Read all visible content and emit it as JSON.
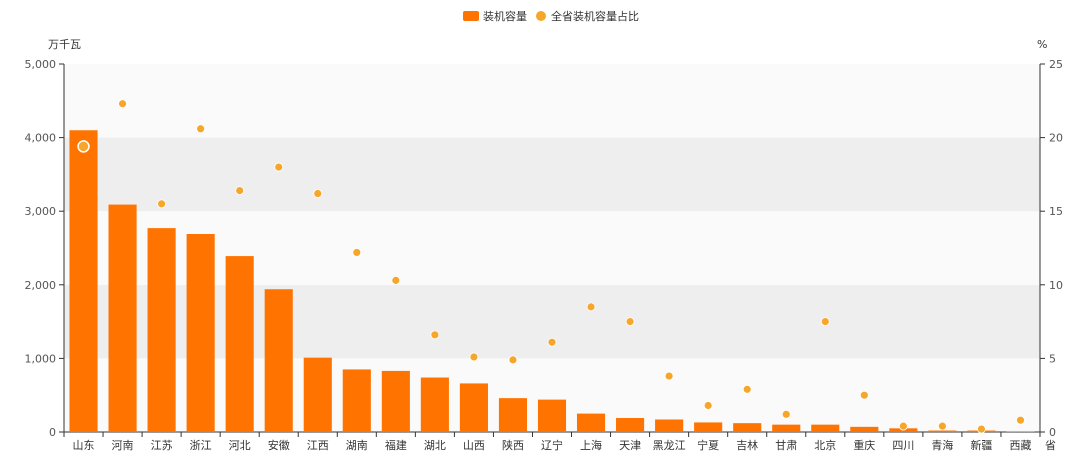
{
  "chart_data": {
    "type": "bar",
    "categories": [
      "山东",
      "河南",
      "江苏",
      "浙江",
      "河北",
      "安徽",
      "江西",
      "湖南",
      "福建",
      "湖北",
      "山西",
      "陕西",
      "辽宁",
      "上海",
      "天津",
      "黑龙江",
      "宁夏",
      "吉林",
      "甘肃",
      "北京",
      "重庆",
      "四川",
      "青海",
      "新疆",
      "西藏"
    ],
    "xlabel": "省",
    "legend_position": "top-center",
    "grid": "alternating horizontal bands",
    "series": [
      {
        "name": "装机容量",
        "type": "bar",
        "axis": "left",
        "color": "#FF7300",
        "values": [
          4100,
          3090,
          2770,
          2690,
          2390,
          1940,
          1010,
          850,
          830,
          740,
          660,
          460,
          440,
          250,
          190,
          170,
          130,
          120,
          100,
          100,
          70,
          50,
          20,
          20,
          5
        ]
      },
      {
        "name": "全省装机容量占比",
        "type": "scatter",
        "axis": "right",
        "color": "#F6A72B",
        "values": [
          19.4,
          22.3,
          15.5,
          20.6,
          16.4,
          18.0,
          16.2,
          12.2,
          10.3,
          6.6,
          5.1,
          4.9,
          6.1,
          8.5,
          7.5,
          3.8,
          1.8,
          2.9,
          1.2,
          7.5,
          2.5,
          0.4,
          0.4,
          0.2,
          0.8
        ]
      }
    ],
    "y_left": {
      "label": "万千瓦",
      "ylim": [
        0,
        5000
      ],
      "ticks": [
        "0",
        "1,000",
        "2,000",
        "3,000",
        "4,000",
        "5,000"
      ],
      "tick_values": [
        0,
        1000,
        2000,
        3000,
        4000,
        5000
      ]
    },
    "y_right": {
      "label": "%",
      "ylim": [
        0,
        25
      ],
      "ticks": [
        "0",
        "5",
        "10",
        "15",
        "20",
        "25"
      ],
      "tick_values": [
        0,
        5,
        10,
        15,
        20,
        25
      ]
    }
  }
}
